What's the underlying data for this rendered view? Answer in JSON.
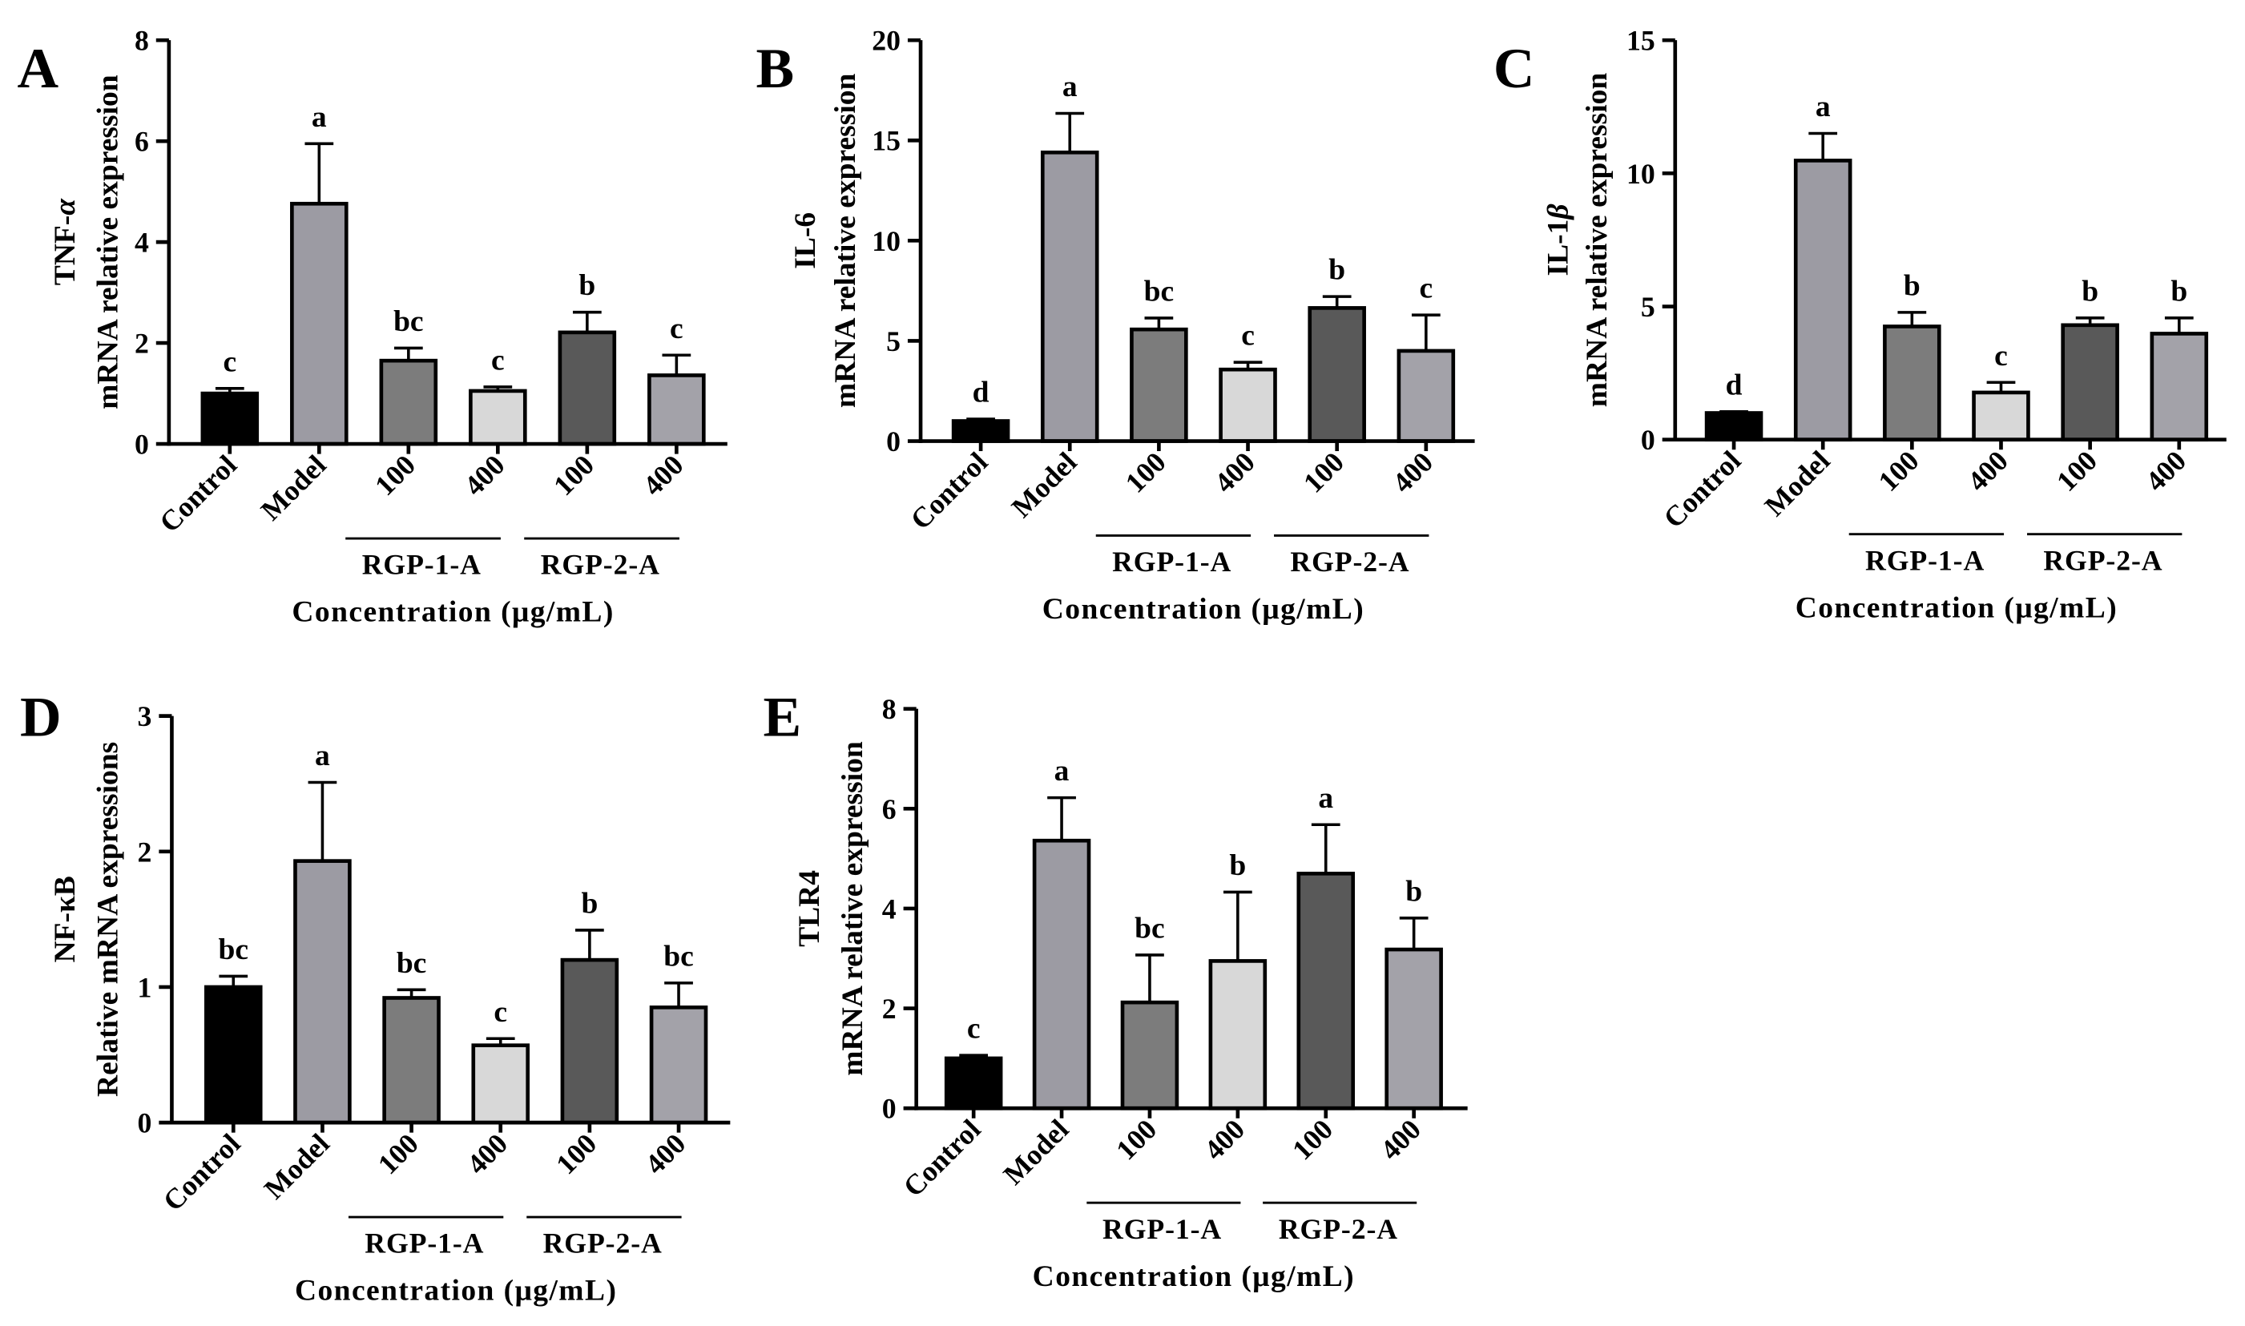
{
  "chart_data": [
    {
      "panel": "A",
      "type": "bar",
      "ylabel": [
        "TNF-α",
        "mRNA relative expression"
      ],
      "xlabel": "Concentration (μg/mL)",
      "categories": [
        "Control",
        "Model",
        "100",
        "400",
        "100",
        "400"
      ],
      "groups": [
        {
          "label": "RGP-1-A",
          "member_indices": [
            2,
            3
          ]
        },
        {
          "label": "RGP-2-A",
          "member_indices": [
            4,
            5
          ]
        }
      ],
      "ylim": [
        0,
        8
      ],
      "yticks": [
        0,
        2,
        4,
        6,
        8
      ],
      "values": [
        1.0,
        4.76,
        1.65,
        1.05,
        2.21,
        1.36
      ],
      "errors": [
        0.1,
        1.19,
        0.25,
        0.08,
        0.4,
        0.4
      ],
      "letters": [
        "c",
        "a",
        "bc",
        "c",
        "b",
        "c"
      ],
      "bar_colors": [
        "#000000",
        "#9c9ba3",
        "#7c7c7c",
        "#d8d8d8",
        "#595959",
        "#a3a2a9"
      ]
    },
    {
      "panel": "B",
      "type": "bar",
      "ylabel": [
        "IL-6",
        "mRNA relative expression"
      ],
      "xlabel": "Concentration (μg/mL)",
      "categories": [
        "Control",
        "Model",
        "100",
        "400",
        "100",
        "400"
      ],
      "groups": [
        {
          "label": "RGP-1-A",
          "member_indices": [
            2,
            3
          ]
        },
        {
          "label": "RGP-2-A",
          "member_indices": [
            4,
            5
          ]
        }
      ],
      "ylim": [
        0,
        20
      ],
      "yticks": [
        0,
        5,
        10,
        15,
        20
      ],
      "values": [
        1.0,
        14.4,
        5.57,
        3.57,
        6.64,
        4.5
      ],
      "errors": [
        0.1,
        1.95,
        0.57,
        0.36,
        0.57,
        1.79
      ],
      "letters": [
        "d",
        "a",
        "bc",
        "c",
        "b",
        "c"
      ],
      "bar_colors": [
        "#000000",
        "#9c9ba3",
        "#7c7c7c",
        "#d8d8d8",
        "#595959",
        "#a3a2a9"
      ]
    },
    {
      "panel": "C",
      "type": "bar",
      "ylabel": [
        "IL-1β",
        "mRNA relative expression"
      ],
      "xlabel": "Concentration (μg/mL)",
      "categories": [
        "Control",
        "Model",
        "100",
        "400",
        "100",
        "400"
      ],
      "groups": [
        {
          "label": "RGP-1-A",
          "member_indices": [
            2,
            3
          ]
        },
        {
          "label": "RGP-2-A",
          "member_indices": [
            4,
            5
          ]
        }
      ],
      "ylim": [
        0,
        15
      ],
      "yticks": [
        0,
        5,
        10,
        15
      ],
      "values": [
        1.0,
        10.48,
        4.25,
        1.77,
        4.3,
        3.98
      ],
      "errors": [
        0.05,
        1.02,
        0.53,
        0.38,
        0.27,
        0.59
      ],
      "letters": [
        "d",
        "a",
        "b",
        "c",
        "b",
        "b"
      ],
      "bar_colors": [
        "#000000",
        "#9c9ba3",
        "#7c7c7c",
        "#d8d8d8",
        "#595959",
        "#a3a2a9"
      ]
    },
    {
      "panel": "D",
      "type": "bar",
      "ylabel": [
        "NF-κB",
        "Relative mRNA expressions"
      ],
      "xlabel": "Concentration (μg/mL)",
      "categories": [
        "Control",
        "Model",
        "100",
        "400",
        "100",
        "400"
      ],
      "groups": [
        {
          "label": "RGP-1-A",
          "member_indices": [
            2,
            3
          ]
        },
        {
          "label": "RGP-2-A",
          "member_indices": [
            4,
            5
          ]
        }
      ],
      "ylim": [
        0,
        3
      ],
      "yticks": [
        0,
        1,
        2,
        3
      ],
      "values": [
        1.0,
        1.93,
        0.92,
        0.57,
        1.2,
        0.85
      ],
      "errors": [
        0.08,
        0.58,
        0.06,
        0.05,
        0.22,
        0.18
      ],
      "letters": [
        "bc",
        "a",
        "bc",
        "c",
        "b",
        "bc"
      ],
      "bar_colors": [
        "#000000",
        "#9c9ba3",
        "#7c7c7c",
        "#d8d8d8",
        "#595959",
        "#a3a2a9"
      ]
    },
    {
      "panel": "E",
      "type": "bar",
      "ylabel": [
        "TLR4",
        "mRNA relative expression"
      ],
      "xlabel": "Concentration (μg/mL)",
      "categories": [
        "Control",
        "Model",
        "100",
        "400",
        "100",
        "400"
      ],
      "groups": [
        {
          "label": "RGP-1-A",
          "member_indices": [
            2,
            3
          ]
        },
        {
          "label": "RGP-2-A",
          "member_indices": [
            4,
            5
          ]
        }
      ],
      "ylim": [
        0,
        8
      ],
      "yticks": [
        0,
        2,
        4,
        6,
        8
      ],
      "values": [
        1.0,
        5.36,
        2.12,
        2.95,
        4.7,
        3.18
      ],
      "errors": [
        0.06,
        0.86,
        0.95,
        1.38,
        0.98,
        0.63
      ],
      "letters": [
        "c",
        "a",
        "bc",
        "b",
        "a",
        "b"
      ],
      "bar_colors": [
        "#000000",
        "#9c9ba3",
        "#7c7c7c",
        "#d8d8d8",
        "#595959",
        "#a3a2a9"
      ]
    }
  ]
}
